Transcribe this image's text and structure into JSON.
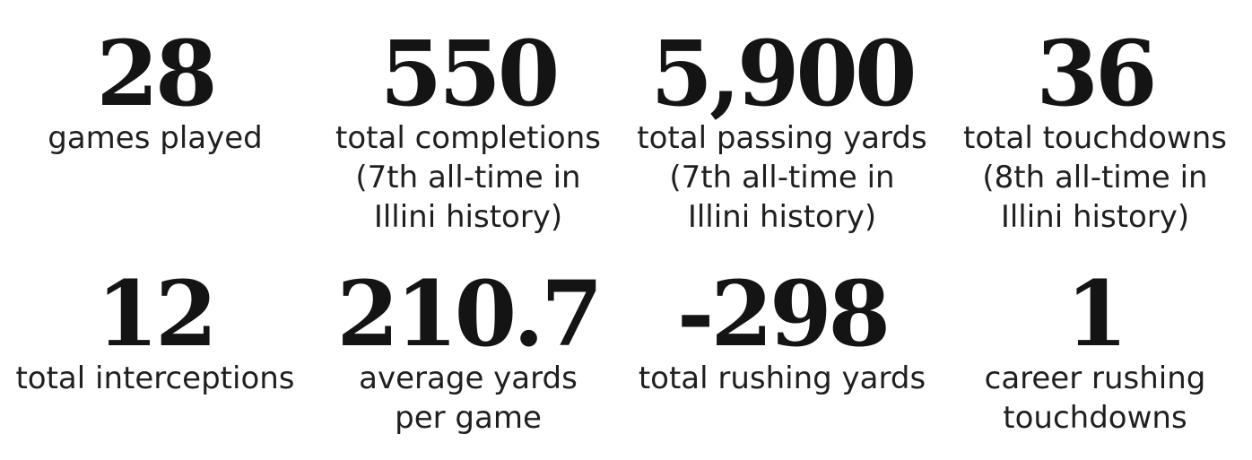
{
  "stats": [
    {
      "value": "28",
      "label": "games played"
    },
    {
      "value": "550",
      "label": "total completions\n(7th all-time in\nIllini history)"
    },
    {
      "value": "5,900",
      "label": "total passing yards\n(7th all-time in\nIllini history)"
    },
    {
      "value": "36",
      "label": "total touchdowns\n(8th all-time in\nIllini history)"
    },
    {
      "value": "12",
      "label": "total interceptions"
    },
    {
      "value": "210.7",
      "label": "average yards\nper game"
    },
    {
      "value": "-298",
      "label": "total rushing yards"
    },
    {
      "value": "1",
      "label": "career rushing\ntouchdowns"
    }
  ]
}
